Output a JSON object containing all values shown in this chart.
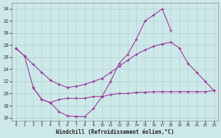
{
  "bg_color": "#cde8e8",
  "grid_color": "#b0d0d0",
  "line_color": "#993399",
  "xlabel": "Windchill (Refroidissement éolien,°C)",
  "xlim": [
    -0.5,
    23.5
  ],
  "ylim": [
    15.5,
    35.0
  ],
  "yticks": [
    16,
    18,
    20,
    22,
    24,
    26,
    28,
    30,
    32,
    34
  ],
  "xticks": [
    0,
    1,
    2,
    3,
    4,
    5,
    6,
    7,
    8,
    9,
    10,
    11,
    12,
    13,
    14,
    15,
    16,
    17,
    18,
    19,
    20,
    21,
    22,
    23
  ],
  "line1_x": [
    0,
    1,
    2,
    3,
    4,
    5,
    6,
    7,
    8,
    9,
    10,
    11,
    12,
    13,
    14,
    15,
    16,
    17,
    18
  ],
  "line1_y": [
    27.5,
    26.2,
    21.0,
    19.0,
    18.5,
    17.0,
    16.3,
    16.2,
    16.2,
    17.5,
    19.5,
    22.0,
    25.0,
    26.5,
    29.0,
    32.0,
    33.0,
    34.0,
    30.5
  ],
  "line2_x": [
    0,
    1,
    2,
    3,
    4,
    5,
    6,
    7,
    8,
    9,
    10,
    11,
    12,
    13,
    14,
    15,
    16,
    17,
    18,
    19,
    20,
    21,
    22,
    23
  ],
  "line2_y": [
    27.5,
    26.2,
    24.8,
    23.5,
    22.2,
    21.5,
    21.0,
    21.2,
    21.5,
    22.0,
    22.5,
    23.5,
    24.5,
    25.5,
    26.5,
    27.2,
    27.8,
    28.2,
    28.5,
    27.5,
    25.0,
    23.5,
    22.0,
    20.5
  ],
  "line3_x": [
    2,
    3,
    4,
    5,
    6,
    7,
    8,
    9,
    10,
    11,
    12,
    13,
    14,
    15,
    16,
    17,
    18,
    19,
    20,
    21,
    22,
    23
  ],
  "line3_y": [
    21.0,
    19.0,
    18.5,
    19.0,
    19.2,
    19.2,
    19.2,
    19.5,
    19.5,
    19.8,
    20.0,
    20.0,
    20.2,
    20.2,
    20.3,
    20.3,
    20.3,
    20.3,
    20.3,
    20.3,
    20.3,
    20.5
  ]
}
